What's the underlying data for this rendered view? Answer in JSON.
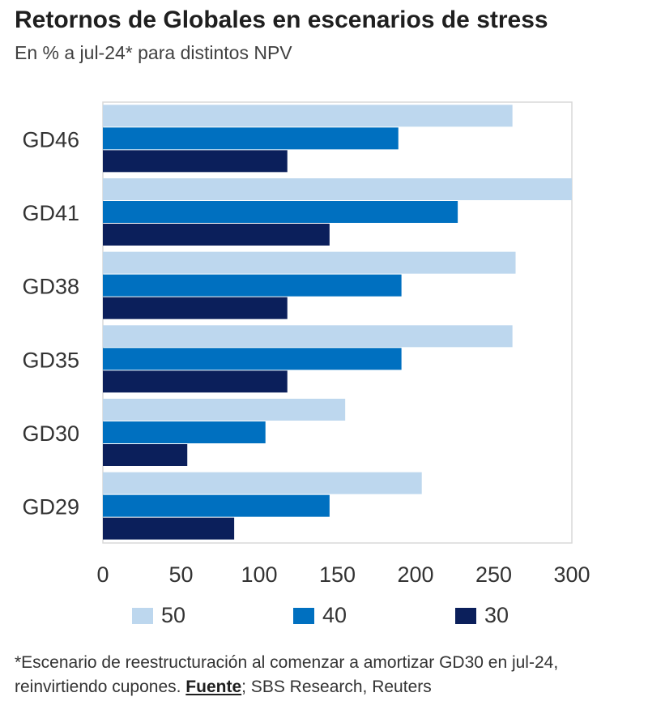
{
  "title": "Retornos de Globales en escenarios de stress",
  "subtitle": "En % a jul-24* para distintos NPV",
  "footnote": {
    "text": "*Escenario de reestructuración al comenzar a amortizar GD30 en jul-24, reinvirtiendo cupones. ",
    "source_label": "Fuente",
    "source_text": "; SBS Research, Reuters"
  },
  "chart_data": {
    "type": "bar",
    "orientation": "horizontal",
    "title": "Retornos de Globales en escenarios de stress",
    "subtitle": "En % a jul-24* para distintos NPV",
    "categories": [
      "GD46",
      "GD41",
      "GD38",
      "GD35",
      "GD30",
      "GD29"
    ],
    "series": [
      {
        "name": "50",
        "color": "#bdd7ee",
        "values": [
          262,
          300,
          264,
          262,
          155,
          204
        ]
      },
      {
        "name": "40",
        "color": "#0070c0",
        "values": [
          189,
          227,
          191,
          191,
          104,
          145
        ]
      },
      {
        "name": "30",
        "color": "#0b1f5b",
        "values": [
          118,
          145,
          118,
          118,
          54,
          84
        ]
      }
    ],
    "xlim": [
      0,
      300
    ],
    "xticks": [
      "0",
      "50",
      "100",
      "150",
      "200",
      "250",
      "300"
    ],
    "grid": false,
    "legend_position": "bottom"
  }
}
